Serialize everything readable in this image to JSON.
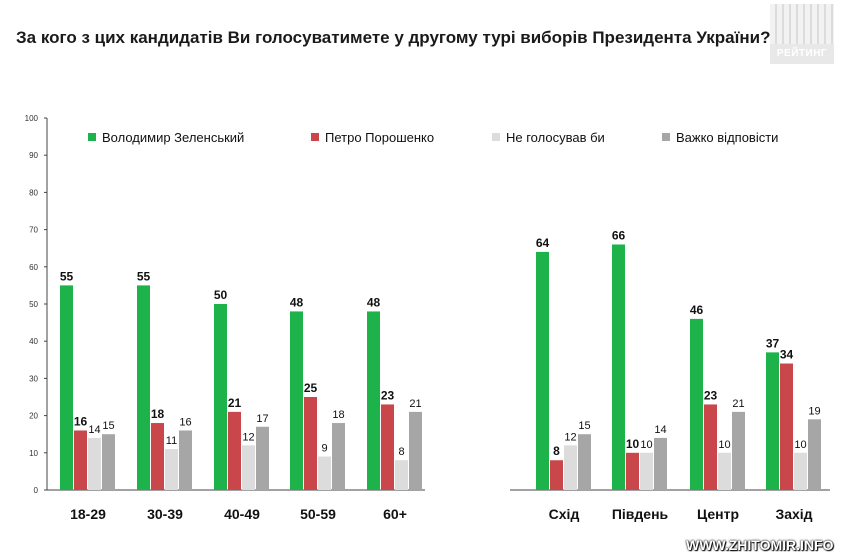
{
  "header": {
    "title": "За кого з цих кандидатів Ви голосуватимете у другому турі виборів Президента України?",
    "logo_text": "РЕЙТИНГ"
  },
  "footer": {
    "watermark": "WWW.ZHITOMIR.INFO"
  },
  "colors": {
    "zelensky": "#1db34a",
    "poroshenko": "#c9474a",
    "not_vote": "#dcdcdc",
    "hard_to_say": "#a6a6a6"
  },
  "chart_data": {
    "type": "bar",
    "title": "За кого з цих кандидатів Ви голосуватимете у другому турі виборів Президента України?",
    "xlabel": "",
    "ylabel": "",
    "ylim": [
      0,
      100
    ],
    "yticks": [
      0,
      10,
      20,
      30,
      40,
      50,
      60,
      70,
      80,
      90,
      100
    ],
    "legend_position": "top",
    "grid": false,
    "categories": [
      "18-29",
      "30-39",
      "40-49",
      "50-59",
      "60+",
      "Схід",
      "Південь",
      "Центр",
      "Захід"
    ],
    "series": [
      {
        "name": "Володимир Зеленський",
        "color": "#1db34a",
        "values": [
          55,
          55,
          50,
          48,
          48,
          64,
          66,
          46,
          37
        ]
      },
      {
        "name": "Петро Порошенко",
        "color": "#c9474a",
        "values": [
          16,
          18,
          21,
          25,
          23,
          8,
          10,
          23,
          34
        ]
      },
      {
        "name": "Не голосував би",
        "color": "#dcdcdc",
        "values": [
          14,
          11,
          12,
          9,
          8,
          12,
          10,
          10,
          10
        ]
      },
      {
        "name": "Важко відповісти",
        "color": "#a6a6a6",
        "values": [
          15,
          16,
          17,
          18,
          21,
          15,
          14,
          21,
          19
        ]
      }
    ]
  }
}
